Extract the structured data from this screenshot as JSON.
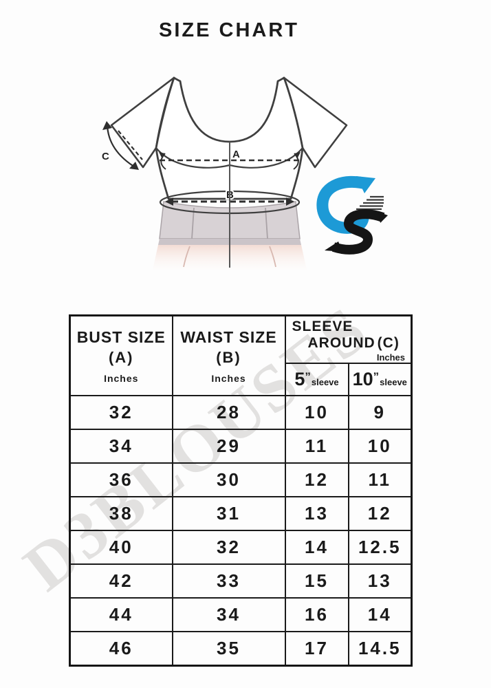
{
  "title": "SIZE CHART",
  "watermark_text": "D3BLOUSES",
  "diagram": {
    "bust_label": "A",
    "waist_label": "B",
    "sleeve_label": "C"
  },
  "colors": {
    "logo_blue": "#1d9ad6",
    "logo_black": "#151515",
    "watermark_gray": "#c9c6c4",
    "skirt_gray": "#d8d2d5",
    "skirt_band": "#cbc4c8",
    "skirt_pink": "#f3dcd4",
    "table_ink": "#1a1a1a"
  },
  "table": {
    "headers": {
      "bust": {
        "title": "BUST SIZE",
        "code": "(A)",
        "unit": "Inches"
      },
      "waist": {
        "title": "WAIST SIZE",
        "code": "(B)",
        "unit": "Inches"
      },
      "sleeve": {
        "title_line1": "SLEEVE",
        "title_line2": "AROUND",
        "code": "(C)",
        "unit": "Inches",
        "sub": [
          {
            "num": "5",
            "quote": "”",
            "label": "sleeve"
          },
          {
            "num": "10",
            "quote": "”",
            "label": "sleeve"
          }
        ]
      }
    },
    "rows": [
      [
        "32",
        "28",
        "10",
        "9"
      ],
      [
        "34",
        "29",
        "11",
        "10"
      ],
      [
        "36",
        "30",
        "12",
        "11"
      ],
      [
        "38",
        "31",
        "13",
        "12"
      ],
      [
        "40",
        "32",
        "14",
        "12.5"
      ],
      [
        "42",
        "33",
        "15",
        "13"
      ],
      [
        "44",
        "34",
        "16",
        "14"
      ],
      [
        "46",
        "35",
        "17",
        "14.5"
      ]
    ]
  },
  "chart_data": {
    "type": "table",
    "title": "SIZE CHART",
    "columns": [
      "BUST SIZE (A) Inches",
      "WAIST SIZE (B) Inches",
      "SLEEVE AROUND (C) Inches 5” sleeve",
      "SLEEVE AROUND (C) Inches 10” sleeve"
    ],
    "rows": [
      [
        32,
        28,
        10,
        9
      ],
      [
        34,
        29,
        11,
        10
      ],
      [
        36,
        30,
        12,
        11
      ],
      [
        38,
        31,
        13,
        12
      ],
      [
        40,
        32,
        14,
        12.5
      ],
      [
        42,
        33,
        15,
        13
      ],
      [
        44,
        34,
        16,
        14
      ],
      [
        46,
        35,
        17,
        14.5
      ]
    ]
  }
}
